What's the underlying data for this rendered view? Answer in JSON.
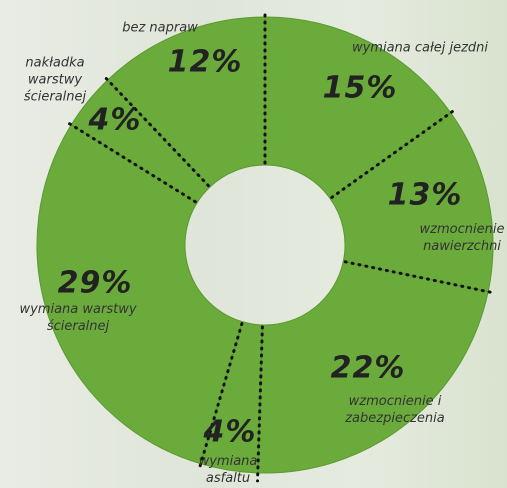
{
  "chart_data": {
    "type": "pie",
    "donut": true,
    "color": "#6bab3c",
    "categories": [
      "wymiana całej jezdni",
      "wzmocnienie nawierzchni",
      "wzmocnienie i zabezpieczenia",
      "wymiana asfaltu",
      "wymiana warstwy ścieralnej",
      "nakładka warstwy ścieralnej",
      "bez napraw"
    ],
    "values": [
      15,
      13,
      22,
      4,
      29,
      4,
      12
    ],
    "value_labels": [
      "15%",
      "13%",
      "22%",
      "4%",
      "29%",
      "4%",
      "12%"
    ]
  }
}
